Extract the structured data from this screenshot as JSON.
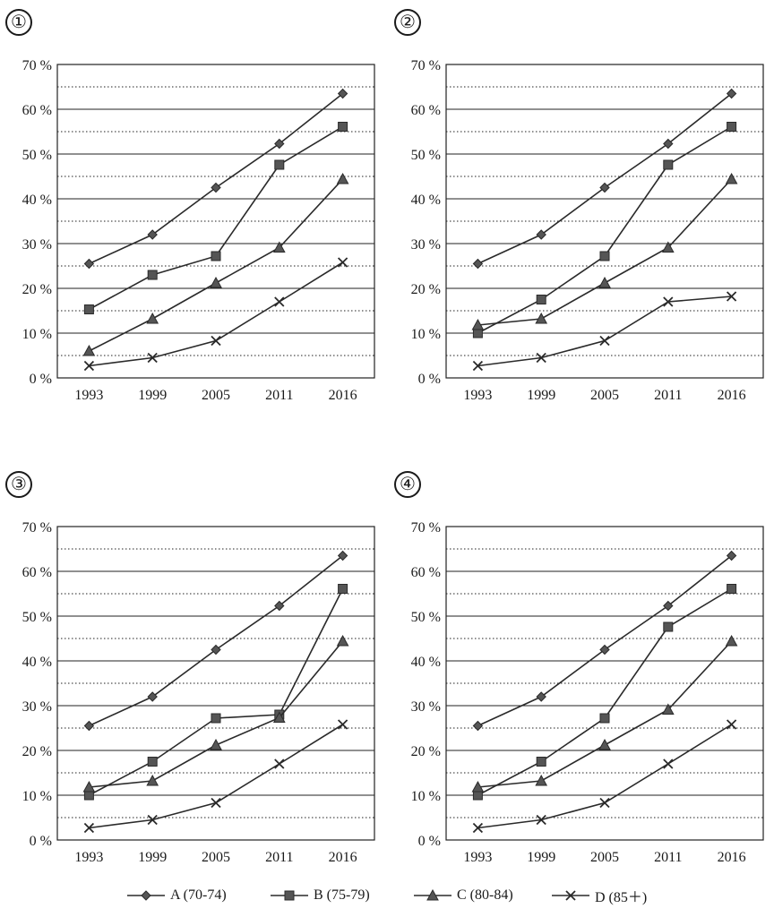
{
  "chart_data": [
    {
      "type": "line",
      "panel_label": "①",
      "categories": [
        "1993",
        "1999",
        "2005",
        "2011",
        "2016"
      ],
      "ylim": [
        0,
        70
      ],
      "y_ticks": [
        "0 %",
        "10 %",
        "20 %",
        "30 %",
        "40 %",
        "50 %",
        "60 %",
        "70 %"
      ],
      "series": [
        {
          "name": "A (70-74)",
          "marker": "diamond",
          "values": [
            25.5,
            32,
            42.5,
            52.3,
            63.5
          ]
        },
        {
          "name": "B (75-79)",
          "marker": "square",
          "values": [
            15.3,
            23,
            27.2,
            47.6,
            56.1
          ]
        },
        {
          "name": "C (80-84)",
          "marker": "triangle",
          "values": [
            6,
            13.2,
            21.2,
            29.1,
            44.4
          ]
        },
        {
          "name": "D (85+)",
          "marker": "x",
          "values": [
            2.7,
            4.5,
            8.3,
            17,
            25.8
          ]
        }
      ]
    },
    {
      "type": "line",
      "panel_label": "②",
      "categories": [
        "1993",
        "1999",
        "2005",
        "2011",
        "2016"
      ],
      "ylim": [
        0,
        70
      ],
      "y_ticks": [
        "0 %",
        "10 %",
        "20 %",
        "30 %",
        "40 %",
        "50 %",
        "60 %",
        "70 %"
      ],
      "series": [
        {
          "name": "A (70-74)",
          "marker": "diamond",
          "values": [
            25.5,
            32,
            42.5,
            52.3,
            63.5
          ]
        },
        {
          "name": "B (75-79)",
          "marker": "square",
          "values": [
            10,
            17.5,
            27.2,
            47.6,
            56.1
          ]
        },
        {
          "name": "C (80-84)",
          "marker": "triangle",
          "values": [
            11.8,
            13.2,
            21.2,
            29.1,
            44.4
          ]
        },
        {
          "name": "D (85+)",
          "marker": "x",
          "values": [
            2.7,
            4.5,
            8.3,
            17,
            18.2
          ]
        }
      ]
    },
    {
      "type": "line",
      "panel_label": "③",
      "categories": [
        "1993",
        "1999",
        "2005",
        "2011",
        "2016"
      ],
      "ylim": [
        0,
        70
      ],
      "y_ticks": [
        "0 %",
        "10 %",
        "20 %",
        "30 %",
        "40 %",
        "50 %",
        "60 %",
        "70 %"
      ],
      "series": [
        {
          "name": "A (70-74)",
          "marker": "diamond",
          "values": [
            25.5,
            32,
            42.5,
            52.3,
            63.5
          ]
        },
        {
          "name": "B (75-79)",
          "marker": "square",
          "values": [
            10,
            17.5,
            27.2,
            28,
            56.1
          ]
        },
        {
          "name": "C (80-84)",
          "marker": "triangle",
          "values": [
            11.8,
            13.2,
            21.2,
            27.3,
            44.4
          ]
        },
        {
          "name": "D (85+)",
          "marker": "x",
          "values": [
            2.7,
            4.5,
            8.3,
            17,
            25.8
          ]
        }
      ]
    },
    {
      "type": "line",
      "panel_label": "④",
      "categories": [
        "1993",
        "1999",
        "2005",
        "2011",
        "2016"
      ],
      "ylim": [
        0,
        70
      ],
      "y_ticks": [
        "0 %",
        "10 %",
        "20 %",
        "30 %",
        "40 %",
        "50 %",
        "60 %",
        "70 %"
      ],
      "series": [
        {
          "name": "A (70-74)",
          "marker": "diamond",
          "values": [
            25.5,
            32,
            42.5,
            52.3,
            63.5
          ]
        },
        {
          "name": "B (75-79)",
          "marker": "square",
          "values": [
            10,
            17.5,
            27.2,
            47.6,
            56.1
          ]
        },
        {
          "name": "C (80-84)",
          "marker": "triangle",
          "values": [
            11.8,
            13.2,
            21.2,
            29.1,
            44.4
          ]
        },
        {
          "name": "D (85+)",
          "marker": "x",
          "values": [
            2.7,
            4.5,
            8.3,
            17,
            25.8
          ]
        }
      ]
    }
  ],
  "legend": {
    "items": [
      {
        "label": "A (70-74)",
        "marker": "diamond"
      },
      {
        "label": "B (75-79)",
        "marker": "square"
      },
      {
        "label": "C (80-84)",
        "marker": "triangle"
      },
      {
        "label": "D (85＋)",
        "marker": "x"
      }
    ]
  },
  "colors": {
    "line": "#2a2a2a",
    "marker_fill": "#555555",
    "grid": "#222222"
  }
}
